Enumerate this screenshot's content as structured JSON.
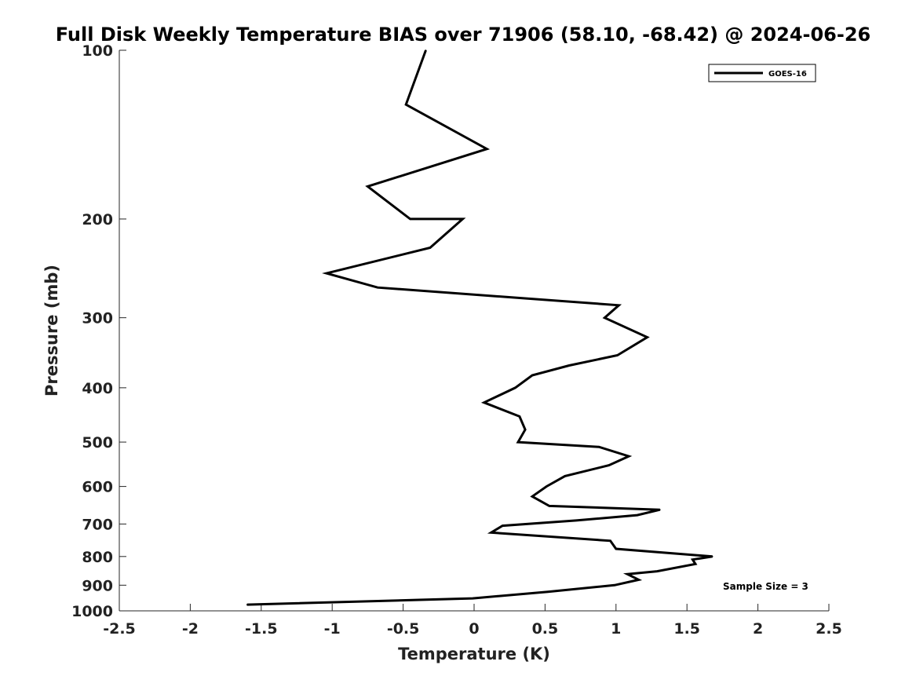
{
  "chart_data": {
    "type": "line",
    "title": "Full Disk Weekly Temperature BIAS over 71906 (58.10, -68.42) @ 2024-06-26",
    "xlabel": "Temperature (K)",
    "ylabel": "Pressure (mb)",
    "xlim": [
      -2.5,
      2.5
    ],
    "ylim": [
      1000,
      100
    ],
    "y_scale": "log",
    "y_reversed": true,
    "grid": false,
    "x_ticks": [
      -2.5,
      -2,
      -1.5,
      -1,
      -0.5,
      0,
      0.5,
      1,
      1.5,
      2,
      2.5
    ],
    "x_tick_labels": [
      "-2.5",
      "-2",
      "-1.5",
      "-1",
      "-0.5",
      "0",
      "0.5",
      "1",
      "1.5",
      "2",
      "2.5"
    ],
    "y_ticks": [
      100,
      200,
      300,
      400,
      500,
      600,
      700,
      800,
      900,
      1000
    ],
    "y_tick_labels": [
      "100",
      "200",
      "300",
      "400",
      "500",
      "600",
      "700",
      "800",
      "900",
      "1000"
    ],
    "legend": {
      "position": "top-right",
      "entries": [
        "GOES-16"
      ]
    },
    "annotations": [
      "Sample Size = 3"
    ],
    "series": [
      {
        "name": "GOES-16",
        "color": "#000000",
        "points": [
          {
            "x": -0.34,
            "y": 100
          },
          {
            "x": -0.48,
            "y": 125
          },
          {
            "x": 0.09,
            "y": 150
          },
          {
            "x": -0.75,
            "y": 175
          },
          {
            "x": -0.45,
            "y": 200
          },
          {
            "x": -0.08,
            "y": 200
          },
          {
            "x": -0.31,
            "y": 225
          },
          {
            "x": -1.04,
            "y": 250
          },
          {
            "x": -0.68,
            "y": 265
          },
          {
            "x": 1.02,
            "y": 285
          },
          {
            "x": 0.92,
            "y": 300
          },
          {
            "x": 1.22,
            "y": 325
          },
          {
            "x": 1.01,
            "y": 350
          },
          {
            "x": 0.67,
            "y": 365
          },
          {
            "x": 0.41,
            "y": 380
          },
          {
            "x": 0.29,
            "y": 400
          },
          {
            "x": 0.07,
            "y": 425
          },
          {
            "x": 0.32,
            "y": 450
          },
          {
            "x": 0.36,
            "y": 475
          },
          {
            "x": 0.31,
            "y": 500
          },
          {
            "x": 0.88,
            "y": 510
          },
          {
            "x": 1.09,
            "y": 530
          },
          {
            "x": 0.95,
            "y": 550
          },
          {
            "x": 0.64,
            "y": 575
          },
          {
            "x": 0.51,
            "y": 600
          },
          {
            "x": 0.41,
            "y": 625
          },
          {
            "x": 0.53,
            "y": 650
          },
          {
            "x": 1.31,
            "y": 660
          },
          {
            "x": 1.15,
            "y": 675
          },
          {
            "x": 0.72,
            "y": 690
          },
          {
            "x": 0.2,
            "y": 705
          },
          {
            "x": 0.12,
            "y": 725
          },
          {
            "x": 0.96,
            "y": 750
          },
          {
            "x": 1.0,
            "y": 775
          },
          {
            "x": 1.68,
            "y": 800
          },
          {
            "x": 1.54,
            "y": 810
          },
          {
            "x": 1.56,
            "y": 825
          },
          {
            "x": 1.29,
            "y": 850
          },
          {
            "x": 1.08,
            "y": 860
          },
          {
            "x": 1.16,
            "y": 880
          },
          {
            "x": 0.99,
            "y": 900
          },
          {
            "x": 0.52,
            "y": 925
          },
          {
            "x": -0.01,
            "y": 950
          },
          {
            "x": -1.6,
            "y": 975
          }
        ]
      }
    ]
  }
}
